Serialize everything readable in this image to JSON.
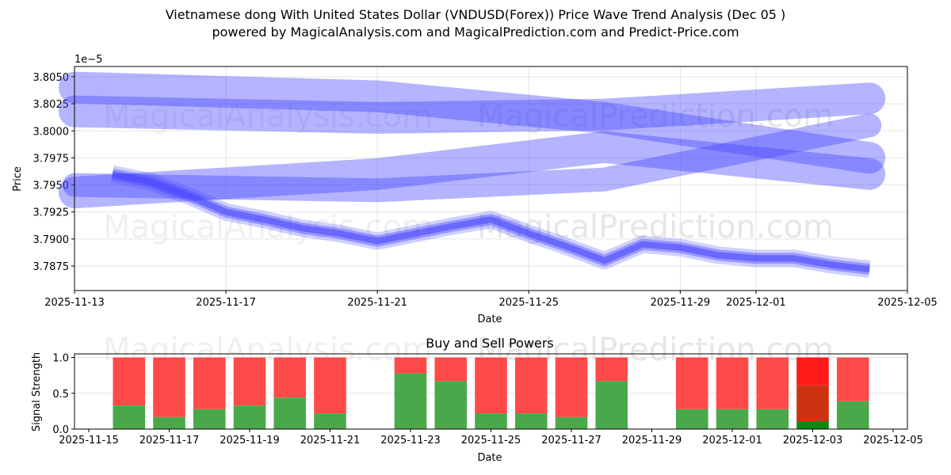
{
  "title": "Vietnamese dong With United States Dollar (VNDUSD(Forex)) Price Wave Trend Analysis (Dec 05 )",
  "subtitle": "powered by MagicalAnalysis.com and MagicalPrediction.com and Predict-Price.com",
  "watermarks": [
    "MagicalAnalysis.com",
    "MagicalPrediction.com"
  ],
  "chart_data": [
    {
      "type": "line",
      "title": "",
      "xlabel": "Date",
      "ylabel": "Price",
      "offset_label": "1e−5",
      "xlim": [
        "2025-11-13",
        "2025-12-05"
      ],
      "ylim": [
        3.78523,
        3.80595
      ],
      "xticks": [
        "2025-11-13",
        "2025-11-17",
        "2025-11-21",
        "2025-11-25",
        "2025-11-29",
        "2025-12-01",
        "2025-12-05"
      ],
      "yticks": [
        "3.7875",
        "3.7900",
        "3.7925",
        "3.7950",
        "3.7975",
        "3.8000",
        "3.8025",
        "3.8050"
      ],
      "series": [
        {
          "name": "price-wave",
          "x": [
            "2025-11-14",
            "2025-11-15",
            "2025-11-16",
            "2025-11-17",
            "2025-11-18",
            "2025-11-19",
            "2025-11-20",
            "2025-11-21",
            "2025-11-22",
            "2025-11-23",
            "2025-11-24",
            "2025-11-25",
            "2025-11-26",
            "2025-11-27",
            "2025-11-28",
            "2025-11-29",
            "2025-11-30",
            "2025-12-01",
            "2025-12-02",
            "2025-12-03",
            "2025-12-04"
          ],
          "y": [
            3.796,
            3.7953,
            3.794,
            3.7925,
            3.7918,
            3.791,
            3.7905,
            3.7898,
            3.7905,
            3.7912,
            3.7918,
            3.7905,
            3.7893,
            3.788,
            3.7895,
            3.7892,
            3.7885,
            3.7882,
            3.7882,
            3.7876,
            3.7872
          ]
        },
        {
          "name": "upper-band-1",
          "x": [
            "2025-11-13",
            "2025-11-21",
            "2025-11-27",
            "2025-12-04"
          ],
          "y": [
            3.804,
            3.8032,
            3.8012,
            3.7975
          ]
        },
        {
          "name": "upper-band-2",
          "x": [
            "2025-11-13",
            "2025-11-21",
            "2025-11-27",
            "2025-12-04"
          ],
          "y": [
            3.8018,
            3.8012,
            3.8015,
            3.803
          ]
        },
        {
          "name": "lower-band-1",
          "x": [
            "2025-11-13",
            "2025-11-21",
            "2025-11-27",
            "2025-12-04"
          ],
          "y": [
            3.7943,
            3.796,
            3.7985,
            3.796
          ]
        },
        {
          "name": "lower-band-2",
          "x": [
            "2025-11-13",
            "2025-11-21",
            "2025-11-27",
            "2025-12-04"
          ],
          "y": [
            3.795,
            3.7945,
            3.7955,
            3.8005
          ]
        }
      ]
    },
    {
      "type": "bar",
      "title": "Buy and Sell Powers",
      "xlabel": "Date",
      "ylabel": "Signal Strength",
      "xlim": [
        "2025-11-14.64",
        "2025-12-05.35"
      ],
      "ylim": [
        0,
        1.05
      ],
      "xticks": [
        "2025-11-15",
        "2025-11-17",
        "2025-11-19",
        "2025-11-21",
        "2025-11-23",
        "2025-11-25",
        "2025-11-27",
        "2025-11-29",
        "2025-12-01",
        "2025-12-03",
        "2025-12-05"
      ],
      "yticks": [
        "0.0",
        "0.5",
        "1.0"
      ],
      "categories": [
        "2025-11-16",
        "2025-11-17",
        "2025-11-18",
        "2025-11-19",
        "2025-11-20",
        "2025-11-21",
        "2025-11-23",
        "2025-11-24",
        "2025-11-25",
        "2025-11-26",
        "2025-11-27",
        "2025-11-28",
        "2025-11-30",
        "2025-12-01",
        "2025-12-02",
        "2025-12-03",
        "2025-12-04"
      ],
      "series": [
        {
          "name": "Buy",
          "color": "#4aa84a",
          "values": [
            0.33,
            0.17,
            0.28,
            0.33,
            0.44,
            0.22,
            0.78,
            0.67,
            0.22,
            0.22,
            0.17,
            0.67,
            0.28,
            0.28,
            0.28,
            0.11,
            0.39
          ]
        },
        {
          "name": "Sell",
          "color": "#ff4a4a",
          "values": [
            0.67,
            0.83,
            0.72,
            0.67,
            0.56,
            0.78,
            0.22,
            0.33,
            0.78,
            0.78,
            0.83,
            0.33,
            0.72,
            0.72,
            0.72,
            0.89,
            0.61
          ]
        }
      ],
      "highlight": {
        "date": "2025-12-03",
        "buy_color": "#118811",
        "mid_value": 0.61,
        "mid_color": "#cc3311",
        "sell_color": "#ff1a1a"
      }
    }
  ]
}
